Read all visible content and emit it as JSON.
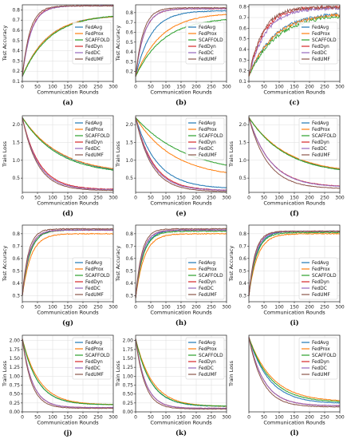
{
  "figure": {
    "colors": {
      "FedAvg": "#1f77b4",
      "FedProx": "#ff7f0e",
      "SCAFFOLD": "#2ca02c",
      "FedDyn": "#d62728",
      "FedDC": "#9467bd",
      "FedUMF": "#8c564b"
    }
  },
  "chart_data": [
    {
      "type": "line",
      "panel_label": "(a)",
      "xlabel": "Communication Rounds",
      "ylabel": "Test Accuracy",
      "xlim": [
        0,
        300
      ],
      "ylim": [
        0.1,
        0.85
      ],
      "xticks": [
        0,
        50,
        100,
        150,
        200,
        250,
        300
      ],
      "yticks": [
        0.1,
        0.2,
        0.3,
        0.4,
        0.5,
        0.6,
        0.7,
        0.8
      ],
      "legend": "center-right",
      "grid": true,
      "series": [
        {
          "name": "FedAvg",
          "start": 0.15,
          "end": 0.75,
          "k": 0.012
        },
        {
          "name": "FedProx",
          "start": 0.15,
          "end": 0.75,
          "k": 0.012
        },
        {
          "name": "SCAFFOLD",
          "start": 0.15,
          "end": 0.76,
          "k": 0.011
        },
        {
          "name": "FedDyn",
          "start": 0.15,
          "end": 0.84,
          "k": 0.035
        },
        {
          "name": "FedDC",
          "start": 0.15,
          "end": 0.84,
          "k": 0.034
        },
        {
          "name": "FedUMF",
          "start": 0.15,
          "end": 0.84,
          "k": 0.04
        }
      ]
    },
    {
      "type": "line",
      "panel_label": "(b)",
      "xlabel": "Communication Rounds",
      "ylabel": "Test Accuracy",
      "xlim": [
        0,
        300
      ],
      "ylim": [
        0.1,
        0.88
      ],
      "xticks": [
        0,
        50,
        100,
        150,
        200,
        250,
        300
      ],
      "yticks": [
        0.2,
        0.3,
        0.4,
        0.5,
        0.6,
        0.7,
        0.8
      ],
      "legend": "center-right",
      "grid": true,
      "series": [
        {
          "name": "FedAvg",
          "start": 0.15,
          "end": 0.82,
          "k": 0.02
        },
        {
          "name": "FedProx",
          "start": 0.15,
          "end": 0.8,
          "k": 0.012
        },
        {
          "name": "SCAFFOLD",
          "start": 0.15,
          "end": 0.75,
          "k": 0.011
        },
        {
          "name": "FedDyn",
          "start": 0.15,
          "end": 0.84,
          "k": 0.035
        },
        {
          "name": "FedDC",
          "start": 0.15,
          "end": 0.84,
          "k": 0.035
        },
        {
          "name": "FedUMF",
          "start": 0.15,
          "end": 0.85,
          "k": 0.04
        }
      ]
    },
    {
      "type": "line",
      "panel_label": "(c)",
      "xlabel": "Communication Rounds",
      "ylabel": "",
      "xlim": [
        0,
        300
      ],
      "ylim": [
        0.1,
        0.82
      ],
      "xticks": [
        0,
        50,
        100,
        150,
        200,
        250,
        300
      ],
      "yticks": [
        0.1,
        0.2,
        0.3,
        0.4,
        0.5,
        0.6,
        0.7,
        0.8
      ],
      "legend": "center-right",
      "grid": true,
      "series": [
        {
          "name": "FedAvg",
          "start": 0.15,
          "end": 0.75,
          "k": 0.012
        },
        {
          "name": "FedProx",
          "start": 0.15,
          "end": 0.74,
          "k": 0.012
        },
        {
          "name": "SCAFFOLD",
          "start": 0.15,
          "end": 0.73,
          "k": 0.011
        },
        {
          "name": "FedDyn",
          "start": 0.15,
          "end": 0.8,
          "k": 0.02
        },
        {
          "name": "FedDC",
          "start": 0.15,
          "end": 0.79,
          "k": 0.018
        },
        {
          "name": "FedUMF",
          "start": 0.15,
          "end": 0.8,
          "k": 0.022
        }
      ]
    },
    {
      "type": "line",
      "panel_label": "(d)",
      "xlabel": "Communication Rounds",
      "ylabel": "Train Loss",
      "xlim": [
        0,
        300
      ],
      "ylim": [
        0.1,
        2.25
      ],
      "xticks": [
        0,
        50,
        100,
        150,
        200,
        250,
        300
      ],
      "yticks": [
        0.5,
        1.0,
        1.5,
        2.0
      ],
      "legend": "upper-right",
      "grid": true,
      "series": [
        {
          "name": "FedAvg",
          "start": 2.2,
          "end": 0.6,
          "k": 0.008
        },
        {
          "name": "FedProx",
          "start": 2.2,
          "end": 0.62,
          "k": 0.008
        },
        {
          "name": "SCAFFOLD",
          "start": 2.2,
          "end": 0.6,
          "k": 0.0085
        },
        {
          "name": "FedDyn",
          "start": 2.2,
          "end": 0.18,
          "k": 0.018
        },
        {
          "name": "FedDC",
          "start": 2.2,
          "end": 0.17,
          "k": 0.019
        },
        {
          "name": "FedUMF",
          "start": 2.2,
          "end": 0.15,
          "k": 0.02
        }
      ]
    },
    {
      "type": "line",
      "panel_label": "(e)",
      "xlabel": "Communication Rounds",
      "ylabel": "Train Loss",
      "xlim": [
        0,
        300
      ],
      "ylim": [
        0.1,
        2.25
      ],
      "xticks": [
        0,
        50,
        100,
        150,
        200,
        250,
        300
      ],
      "yticks": [
        0.5,
        1.0,
        1.5,
        2.0
      ],
      "legend": "upper-right",
      "grid": true,
      "series": [
        {
          "name": "FedAvg",
          "start": 2.2,
          "end": 0.2,
          "k": 0.014
        },
        {
          "name": "FedProx",
          "start": 2.2,
          "end": 0.5,
          "k": 0.008
        },
        {
          "name": "SCAFFOLD",
          "start": 2.2,
          "end": 0.6,
          "k": 0.006
        },
        {
          "name": "FedDyn",
          "start": 2.2,
          "end": 0.15,
          "k": 0.017
        },
        {
          "name": "FedDC",
          "start": 2.2,
          "end": 0.15,
          "k": 0.018
        },
        {
          "name": "FedUMF",
          "start": 2.2,
          "end": 0.12,
          "k": 0.019
        }
      ]
    },
    {
      "type": "line",
      "panel_label": "(f)",
      "xlabel": "Communication Rounds",
      "ylabel": "Train Loss",
      "xlim": [
        0,
        300
      ],
      "ylim": [
        0.1,
        2.25
      ],
      "xticks": [
        0,
        50,
        100,
        150,
        200,
        250,
        300
      ],
      "yticks": [
        0.5,
        1.0,
        1.5,
        2.0
      ],
      "legend": "upper-right",
      "grid": true,
      "series": [
        {
          "name": "FedAvg",
          "start": 2.2,
          "end": 0.6,
          "k": 0.008
        },
        {
          "name": "FedProx",
          "start": 2.2,
          "end": 0.62,
          "k": 0.008
        },
        {
          "name": "SCAFFOLD",
          "start": 2.2,
          "end": 0.6,
          "k": 0.0082
        },
        {
          "name": "FedDyn",
          "start": 2.2,
          "end": 0.25,
          "k": 0.014
        },
        {
          "name": "FedDC",
          "start": 2.2,
          "end": 0.24,
          "k": 0.014
        },
        {
          "name": "FedUMF",
          "start": 2.2,
          "end": 0.2,
          "k": 0.016
        }
      ]
    },
    {
      "type": "line",
      "panel_label": "(g)",
      "xlabel": "Communication Rounds",
      "ylabel": "Test Accuracy",
      "xlim": [
        0,
        300
      ],
      "ylim": [
        0.25,
        0.87
      ],
      "xticks": [
        0,
        50,
        100,
        150,
        200,
        250,
        300
      ],
      "yticks": [
        0.3,
        0.4,
        0.5,
        0.6,
        0.7,
        0.8
      ],
      "legend": "lower-right",
      "grid": true,
      "series": [
        {
          "name": "FedAvg",
          "start": 0.3,
          "end": 0.83,
          "k": 0.04
        },
        {
          "name": "FedProx",
          "start": 0.3,
          "end": 0.8,
          "k": 0.035
        },
        {
          "name": "SCAFFOLD",
          "start": 0.3,
          "end": 0.83,
          "k": 0.04
        },
        {
          "name": "FedDyn",
          "start": 0.3,
          "end": 0.83,
          "k": 0.045
        },
        {
          "name": "FedDC",
          "start": 0.3,
          "end": 0.83,
          "k": 0.045
        },
        {
          "name": "FedUMF",
          "start": 0.3,
          "end": 0.84,
          "k": 0.05
        }
      ]
    },
    {
      "type": "line",
      "panel_label": "(h)",
      "xlabel": "Communication Rounds",
      "ylabel": "Test Accuracy",
      "xlim": [
        0,
        300
      ],
      "ylim": [
        0.25,
        0.87
      ],
      "xticks": [
        0,
        50,
        100,
        150,
        200,
        250,
        300
      ],
      "yticks": [
        0.3,
        0.4,
        0.5,
        0.6,
        0.7,
        0.8
      ],
      "legend": "lower-right",
      "grid": true,
      "series": [
        {
          "name": "FedAvg",
          "start": 0.28,
          "end": 0.83,
          "k": 0.04
        },
        {
          "name": "FedProx",
          "start": 0.28,
          "end": 0.8,
          "k": 0.035
        },
        {
          "name": "SCAFFOLD",
          "start": 0.28,
          "end": 0.82,
          "k": 0.04
        },
        {
          "name": "FedDyn",
          "start": 0.28,
          "end": 0.83,
          "k": 0.045
        },
        {
          "name": "FedDC",
          "start": 0.28,
          "end": 0.83,
          "k": 0.045
        },
        {
          "name": "FedUMF",
          "start": 0.28,
          "end": 0.84,
          "k": 0.05
        }
      ]
    },
    {
      "type": "line",
      "panel_label": "(i)",
      "xlabel": "Communication Rounds",
      "ylabel": "Test Accuracy",
      "xlim": [
        0,
        300
      ],
      "ylim": [
        0.25,
        0.87
      ],
      "xticks": [
        0,
        50,
        100,
        150,
        200,
        250,
        300
      ],
      "yticks": [
        0.3,
        0.4,
        0.5,
        0.6,
        0.7,
        0.8
      ],
      "legend": "lower-right",
      "grid": true,
      "series": [
        {
          "name": "FedAvg",
          "start": 0.3,
          "end": 0.82,
          "k": 0.04
        },
        {
          "name": "FedProx",
          "start": 0.3,
          "end": 0.8,
          "k": 0.035
        },
        {
          "name": "SCAFFOLD",
          "start": 0.3,
          "end": 0.81,
          "k": 0.04
        },
        {
          "name": "FedDyn",
          "start": 0.3,
          "end": 0.82,
          "k": 0.045
        },
        {
          "name": "FedDC",
          "start": 0.3,
          "end": 0.82,
          "k": 0.045
        },
        {
          "name": "FedUMF",
          "start": 0.3,
          "end": 0.82,
          "k": 0.05
        }
      ]
    },
    {
      "type": "line",
      "panel_label": "(j)",
      "xlabel": "Communication Rounds",
      "ylabel": "Train Loss",
      "xlim": [
        0,
        300
      ],
      "ylim": [
        0.0,
        2.15
      ],
      "xticks": [
        0,
        50,
        100,
        150,
        200,
        250,
        300
      ],
      "yticks": [
        0.0,
        0.25,
        0.5,
        0.75,
        1.0,
        1.25,
        1.5,
        1.75,
        2.0
      ],
      "legend": "upper-right",
      "grid": true,
      "series": [
        {
          "name": "FedAvg",
          "start": 2.05,
          "end": 0.2,
          "k": 0.02
        },
        {
          "name": "FedProx",
          "start": 2.05,
          "end": 0.2,
          "k": 0.018
        },
        {
          "name": "SCAFFOLD",
          "start": 2.05,
          "end": 0.2,
          "k": 0.02
        },
        {
          "name": "FedDyn",
          "start": 2.05,
          "end": 0.12,
          "k": 0.03
        },
        {
          "name": "FedDC",
          "start": 2.05,
          "end": 0.12,
          "k": 0.03
        },
        {
          "name": "FedUMF",
          "start": 2.05,
          "end": 0.1,
          "k": 0.033
        }
      ]
    },
    {
      "type": "line",
      "panel_label": "(k)",
      "xlabel": "Communication Rounds",
      "ylabel": "Train Loss",
      "xlim": [
        0,
        300
      ],
      "ylim": [
        0.0,
        2.15
      ],
      "xticks": [
        0,
        50,
        100,
        150,
        200,
        250,
        300
      ],
      "yticks": [
        0.0,
        0.25,
        0.5,
        0.75,
        1.0,
        1.25,
        1.5,
        1.75,
        2.0
      ],
      "legend": "upper-right",
      "grid": true,
      "series": [
        {
          "name": "FedAvg",
          "start": 2.05,
          "end": 0.15,
          "k": 0.02
        },
        {
          "name": "FedProx",
          "start": 2.05,
          "end": 0.15,
          "k": 0.018
        },
        {
          "name": "SCAFFOLD",
          "start": 2.05,
          "end": 0.16,
          "k": 0.02
        },
        {
          "name": "FedDyn",
          "start": 2.05,
          "end": 0.1,
          "k": 0.03
        },
        {
          "name": "FedDC",
          "start": 2.05,
          "end": 0.1,
          "k": 0.03
        },
        {
          "name": "FedUMF",
          "start": 2.05,
          "end": 0.08,
          "k": 0.033
        }
      ]
    },
    {
      "type": "line",
      "panel_label": "(l)",
      "xlabel": "Communication Rounds",
      "ylabel": "Train Loss",
      "xlim": [
        0,
        300
      ],
      "ylim": [
        0.15,
        2.05
      ],
      "xticks": [
        0,
        50,
        100,
        150,
        200,
        250,
        300
      ],
      "yticks": [],
      "legend": "upper-right",
      "grid": true,
      "series": [
        {
          "name": "FedAvg",
          "start": 2.0,
          "end": 0.35,
          "k": 0.015
        },
        {
          "name": "FedProx",
          "start": 2.0,
          "end": 0.4,
          "k": 0.013
        },
        {
          "name": "SCAFFOLD",
          "start": 2.0,
          "end": 0.38,
          "k": 0.014
        },
        {
          "name": "FedDyn",
          "start": 2.0,
          "end": 0.3,
          "k": 0.02
        },
        {
          "name": "FedDC",
          "start": 2.0,
          "end": 0.3,
          "k": 0.02
        },
        {
          "name": "FedUMF",
          "start": 2.0,
          "end": 0.27,
          "k": 0.022
        }
      ]
    }
  ]
}
